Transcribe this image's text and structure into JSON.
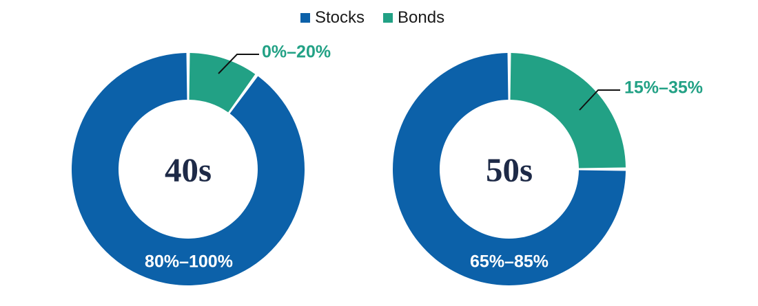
{
  "legend": {
    "items": [
      {
        "label": "Stocks",
        "color": "#0c61a9"
      },
      {
        "label": "Bonds",
        "color": "#22a185"
      }
    ]
  },
  "colors": {
    "stocks_blue": "#0c61a9",
    "bonds_green": "#22a185",
    "center_label_navy": "#1e2a47",
    "ring_label_white": "#ffffff",
    "callout_line_black": "#111111",
    "background": "#ffffff"
  },
  "chart_data": [
    {
      "type": "pie",
      "subtype": "donut",
      "center_label": "40s",
      "legend_position": "top-center",
      "slices": [
        {
          "label": "Bonds",
          "fraction": 0.1,
          "allocation_range": "0%–20%",
          "color": "#22a185"
        },
        {
          "label": "Stocks",
          "fraction": 0.9,
          "allocation_range": "80%–100%",
          "color": "#0c61a9"
        }
      ],
      "ring_label": "80%–100%",
      "callout_label": "0%–20%"
    },
    {
      "type": "pie",
      "subtype": "donut",
      "center_label": "50s",
      "legend_position": "top-center",
      "slices": [
        {
          "label": "Bonds",
          "fraction": 0.25,
          "allocation_range": "15%–35%",
          "color": "#22a185"
        },
        {
          "label": "Stocks",
          "fraction": 0.75,
          "allocation_range": "65%–85%",
          "color": "#0c61a9"
        }
      ],
      "ring_label": "65%–85%",
      "callout_label": "15%–35%"
    }
  ]
}
